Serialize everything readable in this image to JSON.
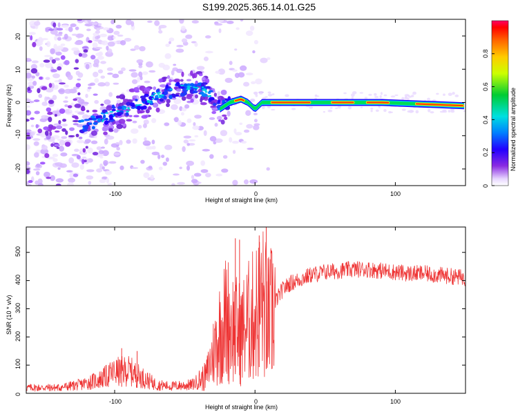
{
  "chart_data": [
    {
      "type": "heatmap",
      "title": "S199.2025.365.14.01.G25",
      "xlabel": "Height of straight line (km)",
      "ylabel": "Frequency (Hz)",
      "xlim": [
        -163,
        150
      ],
      "ylim": [
        -25,
        25
      ],
      "xticks": [
        -100,
        0,
        100
      ],
      "yticks": [
        -20,
        -10,
        0,
        10,
        20
      ],
      "colorbar": {
        "label": "Normalized spectral amplitude",
        "range": [
          0.0,
          1.0
        ],
        "ticks": [
          0.0,
          0.2,
          0.4,
          0.6,
          0.8
        ]
      },
      "ridge": [
        {
          "x": -125,
          "y": -7
        },
        {
          "x": -110,
          "y": -5
        },
        {
          "x": -100,
          "y": -3
        },
        {
          "x": -85,
          "y": -1
        },
        {
          "x": -70,
          "y": 2
        },
        {
          "x": -55,
          "y": 4
        },
        {
          "x": -40,
          "y": 5
        },
        {
          "x": -30,
          "y": 2
        },
        {
          "x": -25,
          "y": -2
        },
        {
          "x": -18,
          "y": 0
        },
        {
          "x": -10,
          "y": 1
        },
        {
          "x": -5,
          "y": 0
        },
        {
          "x": 0,
          "y": -2
        },
        {
          "x": 5,
          "y": 0
        },
        {
          "x": 30,
          "y": 0
        },
        {
          "x": 60,
          "y": 0
        },
        {
          "x": 90,
          "y": 0
        },
        {
          "x": 120,
          "y": -0.5
        },
        {
          "x": 150,
          "y": -1
        }
      ]
    },
    {
      "type": "line",
      "xlabel": "Height of straight line (km)",
      "ylabel": "SNR (10 * v/v)",
      "xlim": [
        -163,
        150
      ],
      "ylim": [
        0,
        590
      ],
      "xticks": [
        -100,
        0,
        100
      ],
      "yticks": [
        0,
        100,
        200,
        300,
        400,
        500
      ],
      "color": "#ee3333",
      "envelope": [
        {
          "x": -163,
          "y": 20
        },
        {
          "x": -140,
          "y": 20
        },
        {
          "x": -125,
          "y": 30
        },
        {
          "x": -110,
          "y": 50
        },
        {
          "x": -100,
          "y": 75
        },
        {
          "x": -90,
          "y": 80
        },
        {
          "x": -80,
          "y": 55
        },
        {
          "x": -70,
          "y": 30
        },
        {
          "x": -60,
          "y": 25
        },
        {
          "x": -45,
          "y": 30
        },
        {
          "x": -35,
          "y": 60
        },
        {
          "x": -30,
          "y": 140
        },
        {
          "x": -25,
          "y": 220
        },
        {
          "x": -20,
          "y": 270
        },
        {
          "x": -15,
          "y": 230
        },
        {
          "x": -10,
          "y": 210
        },
        {
          "x": -5,
          "y": 250
        },
        {
          "x": 0,
          "y": 280
        },
        {
          "x": 5,
          "y": 330
        },
        {
          "x": 10,
          "y": 260
        },
        {
          "x": 15,
          "y": 330
        },
        {
          "x": 20,
          "y": 370
        },
        {
          "x": 25,
          "y": 390
        },
        {
          "x": 30,
          "y": 400
        },
        {
          "x": 40,
          "y": 420
        },
        {
          "x": 50,
          "y": 430
        },
        {
          "x": 60,
          "y": 435
        },
        {
          "x": 70,
          "y": 440
        },
        {
          "x": 80,
          "y": 440
        },
        {
          "x": 90,
          "y": 435
        },
        {
          "x": 100,
          "y": 430
        },
        {
          "x": 110,
          "y": 425
        },
        {
          "x": 120,
          "y": 425
        },
        {
          "x": 130,
          "y": 420
        },
        {
          "x": 140,
          "y": 415
        },
        {
          "x": 150,
          "y": 410
        }
      ],
      "peaks": [
        {
          "x": -14,
          "y": 550
        },
        {
          "x": -11,
          "y": 545
        },
        {
          "x": 3,
          "y": 560
        },
        {
          "x": 8,
          "y": 590
        },
        {
          "x": 12,
          "y": 500
        },
        {
          "x": -84,
          "y": 150
        },
        {
          "x": -95,
          "y": 160
        }
      ]
    }
  ]
}
